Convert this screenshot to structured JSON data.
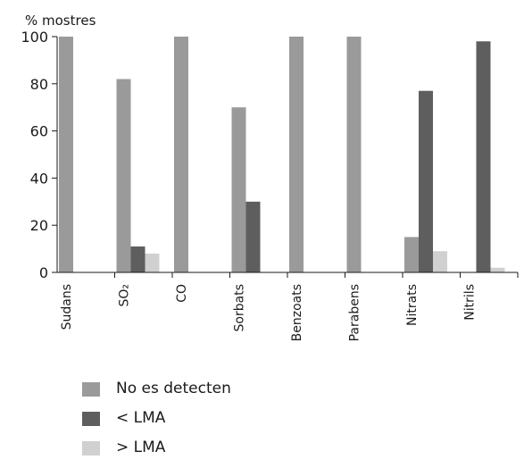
{
  "chart_data": {
    "type": "bar",
    "ylabel": "% mostres",
    "ylim": [
      0,
      100
    ],
    "yticks": [
      0,
      20,
      40,
      60,
      80,
      100
    ],
    "categories": [
      "Sudans",
      "SO₂",
      "CO",
      "Sorbats",
      "Benzoats",
      "Parabens",
      "Nitrats",
      "Nitrils"
    ],
    "series": [
      {
        "name": "No es detecten",
        "color": "#9a9a9a",
        "values": [
          100,
          82,
          100,
          70,
          100,
          100,
          15,
          0
        ]
      },
      {
        "name": "< LMA",
        "color": "#5e5e5e",
        "values": [
          0,
          11,
          0,
          30,
          0,
          0,
          77,
          98
        ]
      },
      {
        "name": "> LMA",
        "color": "#d0d0d0",
        "values": [
          0,
          8,
          0,
          0,
          0,
          0,
          9,
          2
        ]
      }
    ],
    "legend_position": "bottom-left",
    "grid": false
  }
}
